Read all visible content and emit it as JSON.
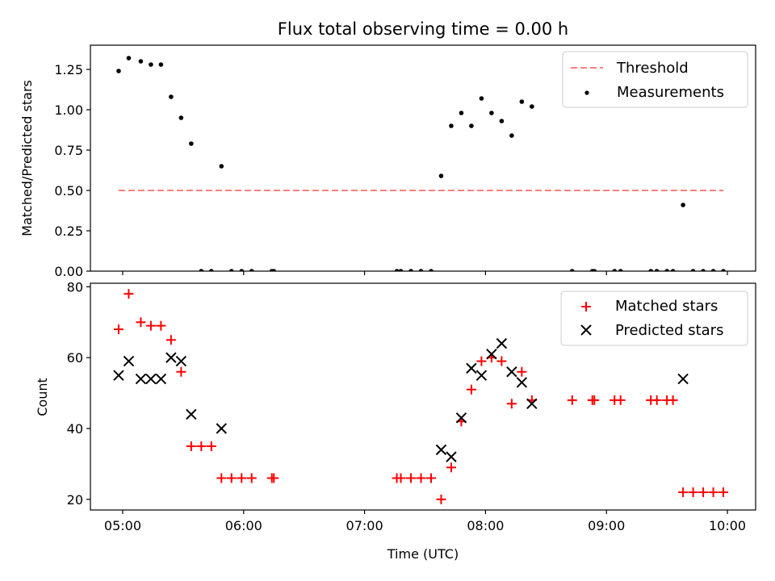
{
  "chart_data": [
    {
      "type": "scatter",
      "title": "Flux total observing time = 0.00 h",
      "xlabel": "",
      "ylabel": "Matched/Predicted stars",
      "xlim": [
        "04:44",
        "10:14"
      ],
      "ylim": [
        0,
        1.4
      ],
      "xticks": [
        "05:00",
        "06:00",
        "07:00",
        "08:00",
        "09:00",
        "10:00"
      ],
      "xticks_labeled": false,
      "yticks": [
        "0.00",
        "0.25",
        "0.50",
        "0.75",
        "1.00",
        "1.25"
      ],
      "grid": false,
      "legend": {
        "placement": "top-right"
      },
      "series": [
        {
          "name": "Threshold",
          "kind": "line",
          "style": "dashed",
          "color": "#ff7f7f",
          "x": [
            "04:58",
            "09:58"
          ],
          "y": [
            0.5,
            0.5
          ]
        },
        {
          "name": "Measurements",
          "kind": "scatter",
          "marker": "dot",
          "color": "#000000",
          "x": [
            "04:58",
            "05:03",
            "05:09",
            "05:14",
            "05:19",
            "05:24",
            "05:29",
            "05:34",
            "05:39",
            "05:44",
            "05:49",
            "05:54",
            "05:59",
            "06:04",
            "06:14",
            "06:15",
            "07:16",
            "07:18",
            "07:23",
            "07:28",
            "07:33",
            "07:38",
            "07:43",
            "07:48",
            "07:53",
            "07:58",
            "08:03",
            "08:08",
            "08:13",
            "08:18",
            "08:23",
            "08:43",
            "08:53",
            "08:54",
            "09:04",
            "09:07",
            "09:22",
            "09:25",
            "09:30",
            "09:33",
            "09:38",
            "09:43",
            "09:48",
            "09:53",
            "09:58"
          ],
          "y": [
            1.24,
            1.32,
            1.3,
            1.28,
            1.28,
            1.08,
            0.95,
            0.79,
            0.0,
            0.0,
            0.65,
            0.0,
            0.0,
            0.0,
            0.0,
            0.0,
            0.0,
            0.0,
            0.0,
            0.0,
            0.0,
            0.59,
            0.9,
            0.98,
            0.9,
            1.07,
            0.98,
            0.93,
            0.84,
            1.05,
            1.02,
            0.0,
            0.0,
            0.0,
            0.0,
            0.0,
            0.0,
            0.0,
            0.0,
            0.0,
            0.41,
            0.0,
            0.0,
            0.0,
            0.0
          ]
        }
      ]
    },
    {
      "type": "scatter",
      "title": "",
      "xlabel": "Time (UTC)",
      "ylabel": "Count",
      "xlim": [
        "04:44",
        "10:14"
      ],
      "ylim": [
        17,
        81
      ],
      "xticks": [
        "05:00",
        "06:00",
        "07:00",
        "08:00",
        "09:00",
        "10:00"
      ],
      "yticks": [
        "20",
        "40",
        "60",
        "80"
      ],
      "grid": false,
      "legend": {
        "placement": "top-right"
      },
      "series": [
        {
          "name": "Matched stars",
          "kind": "scatter",
          "marker": "plus",
          "color": "#ff0000",
          "x": [
            "04:58",
            "05:03",
            "05:09",
            "05:14",
            "05:19",
            "05:24",
            "05:29",
            "05:34",
            "05:39",
            "05:44",
            "05:49",
            "05:54",
            "05:59",
            "06:04",
            "06:14",
            "06:15",
            "07:16",
            "07:18",
            "07:23",
            "07:28",
            "07:33",
            "07:38",
            "07:43",
            "07:48",
            "07:53",
            "07:58",
            "08:03",
            "08:08",
            "08:13",
            "08:18",
            "08:23",
            "08:43",
            "08:53",
            "08:54",
            "09:04",
            "09:07",
            "09:22",
            "09:25",
            "09:30",
            "09:33",
            "09:38",
            "09:43",
            "09:48",
            "09:53",
            "09:58"
          ],
          "y": [
            68,
            78,
            70,
            69,
            69,
            65,
            56,
            35,
            35,
            35,
            26,
            26,
            26,
            26,
            26,
            26,
            26,
            26,
            26,
            26,
            26,
            20,
            29,
            42,
            51,
            59,
            60,
            59,
            47,
            56,
            48,
            48,
            48,
            48,
            48,
            48,
            48,
            48,
            48,
            48,
            22,
            22,
            22,
            22,
            22
          ]
        },
        {
          "name": "Predicted stars",
          "kind": "scatter",
          "marker": "x",
          "color": "#000000",
          "x": [
            "04:58",
            "05:03",
            "05:09",
            "05:14",
            "05:19",
            "05:24",
            "05:29",
            "05:34",
            "05:49",
            "07:38",
            "07:43",
            "07:48",
            "07:53",
            "07:58",
            "08:03",
            "08:08",
            "08:13",
            "08:18",
            "08:23",
            "09:38"
          ],
          "y": [
            55,
            59,
            54,
            54,
            54,
            60,
            59,
            44,
            40,
            34,
            32,
            43,
            57,
            55,
            61,
            64,
            56,
            53,
            47,
            54
          ]
        }
      ]
    }
  ]
}
